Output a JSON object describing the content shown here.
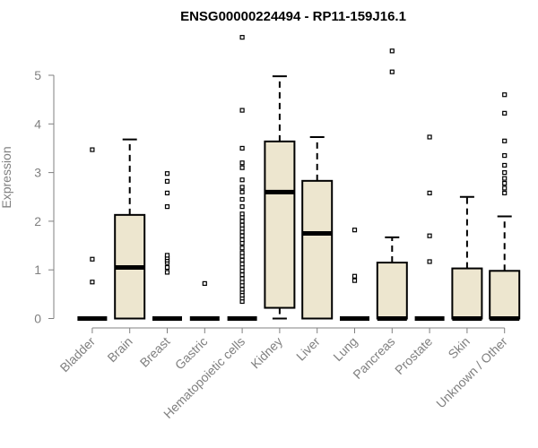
{
  "chart_data": {
    "type": "boxplot",
    "title": "ENSG00000224494 - RP11-159J16.1",
    "xlabel": "",
    "ylabel": "Expression",
    "ylim": [
      0,
      5.8
    ],
    "yticks": [
      0,
      1,
      2,
      3,
      4,
      5
    ],
    "grid": false,
    "box_color": "#ede6cf",
    "categories": [
      "Bladder",
      "Brain",
      "Breast",
      "Gastric",
      "Hematopoietic cells",
      "Kidney",
      "Liver",
      "Lung",
      "Pancreas",
      "Prostate",
      "Skin",
      "Unknown / Other"
    ],
    "boxes": [
      {
        "q1": 0,
        "median": 0,
        "q3": 0,
        "whisker_low": 0,
        "whisker_high": 0,
        "outliers": [
          0.75,
          1.22,
          3.47
        ]
      },
      {
        "q1": 0,
        "median": 1.05,
        "q3": 2.13,
        "whisker_low": 0,
        "whisker_high": 3.68,
        "outliers": []
      },
      {
        "q1": 0,
        "median": 0,
        "q3": 0,
        "whisker_low": 0,
        "whisker_high": 0,
        "outliers": [
          0.95,
          1.05,
          1.15,
          1.2,
          1.25,
          1.3,
          2.3,
          2.58,
          2.82,
          2.98
        ]
      },
      {
        "q1": 0,
        "median": 0,
        "q3": 0,
        "whisker_low": 0,
        "whisker_high": 0,
        "outliers": [
          0.72
        ]
      },
      {
        "q1": 0,
        "median": 0,
        "q3": 0,
        "whisker_low": 0,
        "whisker_high": 0,
        "outliers": [
          0.35,
          0.42,
          0.48,
          0.55,
          0.6,
          0.68,
          0.75,
          0.82,
          0.9,
          0.98,
          1.05,
          1.12,
          1.2,
          1.28,
          1.35,
          1.45,
          1.55,
          1.62,
          1.7,
          1.78,
          1.85,
          1.92,
          2.0,
          2.08,
          2.15,
          2.3,
          2.45,
          2.6,
          2.7,
          2.85,
          3.1,
          3.2,
          3.5,
          4.28,
          5.78
        ]
      },
      {
        "q1": 0.22,
        "median": 2.6,
        "q3": 3.64,
        "whisker_low": 0,
        "whisker_high": 4.98,
        "outliers": []
      },
      {
        "q1": 0,
        "median": 1.75,
        "q3": 2.83,
        "whisker_low": 0,
        "whisker_high": 3.73,
        "outliers": []
      },
      {
        "q1": 0,
        "median": 0,
        "q3": 0,
        "whisker_low": 0,
        "whisker_high": 0,
        "outliers": [
          0.78,
          0.87,
          1.82
        ]
      },
      {
        "q1": 0,
        "median": 0,
        "q3": 1.15,
        "whisker_low": 0,
        "whisker_high": 1.67,
        "outliers": [
          5.07,
          5.5
        ]
      },
      {
        "q1": 0,
        "median": 0,
        "q3": 0,
        "whisker_low": 0,
        "whisker_high": 0,
        "outliers": [
          1.17,
          1.7,
          2.58,
          3.73
        ]
      },
      {
        "q1": 0,
        "median": 0,
        "q3": 1.03,
        "whisker_low": 0,
        "whisker_high": 2.5,
        "outliers": []
      },
      {
        "q1": 0,
        "median": 0,
        "q3": 0.98,
        "whisker_low": 0,
        "whisker_high": 2.1,
        "outliers": [
          2.58,
          2.68,
          2.78,
          2.88,
          3.0,
          3.15,
          3.35,
          3.65,
          4.22,
          4.6
        ]
      }
    ]
  }
}
